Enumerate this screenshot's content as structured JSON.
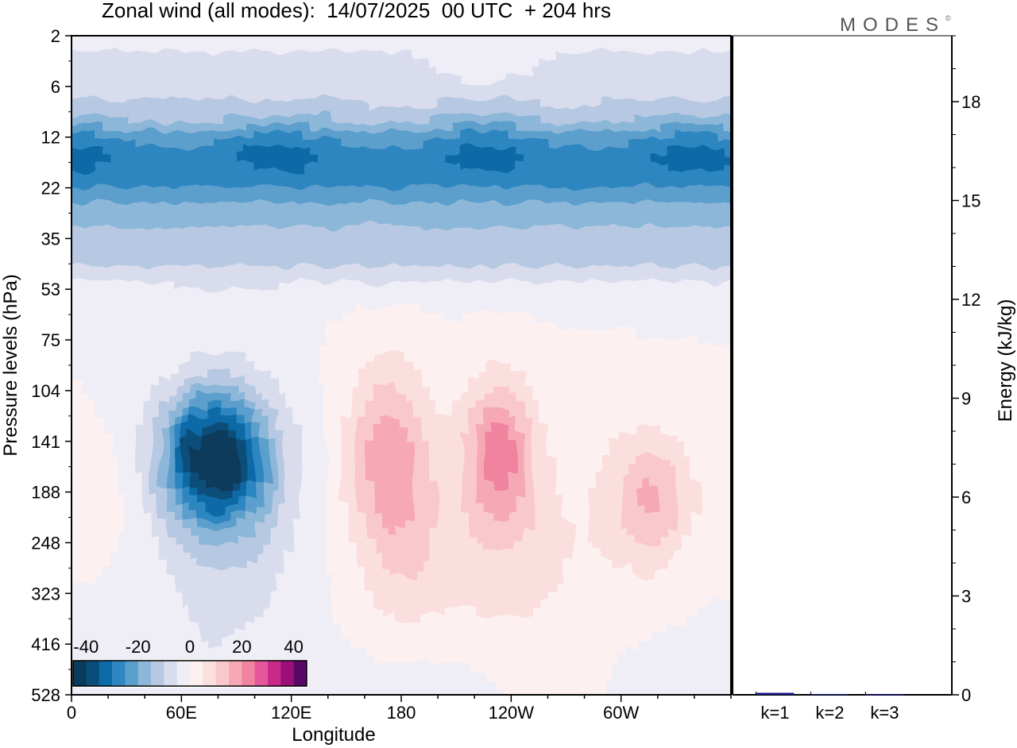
{
  "title": "Zonal wind (all modes):  14/07/2025  00 UTC  + 204 hrs",
  "brand": "MODES",
  "brand_mark": "©",
  "colors": {
    "frame": "#000000",
    "bar": "#1a1a8c",
    "neg": [
      "#0a3b5c",
      "#0b4d7a",
      "#0c6aa6",
      "#2f86c0",
      "#5b9fcc",
      "#8db7d9",
      "#b7c9e2",
      "#d8dcec",
      "#efeef6"
    ],
    "pos": [
      "#fdf0f0",
      "#fbdede",
      "#f9c8cc",
      "#f6a9b5",
      "#f083a0",
      "#e4579a",
      "#c92a8a",
      "#9b0f78",
      "#5a0868"
    ]
  },
  "chart_data": [
    {
      "type": "heatmap",
      "xlabel": "Longitude",
      "ylabel": "Pressure levels (hPa)",
      "x_ticks": [
        "0",
        "60E",
        "120E",
        "180",
        "120W",
        "60W"
      ],
      "y_ticks": [
        "2",
        "6",
        "12",
        "22",
        "35",
        "53",
        "75",
        "104",
        "141",
        "188",
        "248",
        "323",
        "416",
        "528"
      ],
      "x_range": [
        0,
        360
      ],
      "colorbar": {
        "ticks": [
          "-40",
          "-20",
          "0",
          "20",
          "40"
        ],
        "levels": [
          -45,
          -40,
          -35,
          -30,
          -25,
          -20,
          -15,
          -10,
          -5,
          0,
          5,
          10,
          15,
          20,
          25,
          30,
          35,
          40,
          45
        ]
      },
      "features": [
        {
          "desc": "strong easterly band",
          "lon": [
            0,
            360
          ],
          "level_idx": [
            1.8,
            3.6
          ],
          "value": -30
        },
        {
          "desc": "easterly core",
          "lon": [
            60,
            95
          ],
          "level_idx": [
            7.6,
            9.0
          ],
          "value": -40
        },
        {
          "desc": "westerly maximum",
          "lon": [
            158,
            185
          ],
          "level_idx": [
            7.2,
            9.2
          ],
          "value": 15
        },
        {
          "desc": "westerly maximum",
          "lon": [
            222,
            245
          ],
          "level_idx": [
            7.4,
            9.0
          ],
          "value": 20
        },
        {
          "desc": "westerly maximum",
          "lon": [
            302,
            330
          ],
          "level_idx": [
            8.4,
            9.8
          ],
          "value": 15
        }
      ]
    },
    {
      "type": "bar",
      "categories": [
        "k=1",
        "k=2",
        "k=3"
      ],
      "values": [
        0.06,
        0.02,
        0.01
      ],
      "ylabel": "Energy (kJ/kg)",
      "ylim": [
        0,
        20
      ],
      "y_ticks": [
        "0",
        "3",
        "6",
        "9",
        "12",
        "15",
        "18"
      ]
    }
  ]
}
